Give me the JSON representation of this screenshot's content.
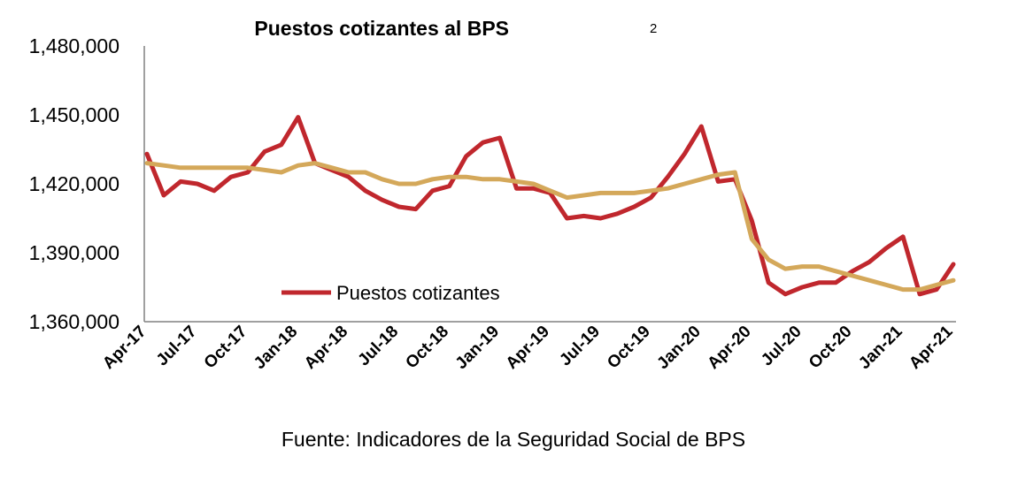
{
  "chart_data": {
    "type": "line",
    "title": "Puestos cotizantes al BPS",
    "title_superscript": "2",
    "x": [
      "Apr-17",
      "May-17",
      "Jun-17",
      "Jul-17",
      "Aug-17",
      "Sep-17",
      "Oct-17",
      "Nov-17",
      "Dec-17",
      "Jan-18",
      "Feb-18",
      "Mar-18",
      "Apr-18",
      "May-18",
      "Jun-18",
      "Jul-18",
      "Aug-18",
      "Sep-18",
      "Oct-18",
      "Nov-18",
      "Dec-18",
      "Jan-19",
      "Feb-19",
      "Mar-19",
      "Apr-19",
      "May-19",
      "Jun-19",
      "Jul-19",
      "Aug-19",
      "Sep-19",
      "Oct-19",
      "Nov-19",
      "Dec-19",
      "Jan-20",
      "Feb-20",
      "Mar-20",
      "Apr-20",
      "May-20",
      "Jun-20",
      "Jul-20",
      "Aug-20",
      "Sep-20",
      "Oct-20",
      "Nov-20",
      "Dec-20",
      "Jan-21",
      "Feb-21",
      "Mar-21",
      "Apr-21"
    ],
    "xtick_labels": [
      "Apr-17",
      "Jul-17",
      "Oct-17",
      "Jan-18",
      "Apr-18",
      "Jul-18",
      "Oct-18",
      "Jan-19",
      "Apr-19",
      "Jul-19",
      "Oct-19",
      "Jan-20",
      "Apr-20",
      "Jul-20",
      "Oct-20",
      "Jan-21",
      "Apr-21"
    ],
    "ytick_labels": [
      "1,360,000",
      "1,390,000",
      "1,420,000",
      "1,450,000",
      "1,480,000"
    ],
    "ylim": [
      1360000,
      1480000
    ],
    "series": [
      {
        "name": "Puestos cotizantes",
        "color": "#c0272d",
        "values": [
          1433000,
          1415000,
          1421000,
          1420000,
          1417000,
          1423000,
          1425000,
          1434000,
          1437000,
          1449000,
          1429000,
          1426000,
          1423000,
          1417000,
          1413000,
          1410000,
          1409000,
          1417000,
          1419000,
          1432000,
          1438000,
          1440000,
          1418000,
          1418000,
          1416000,
          1405000,
          1406000,
          1405000,
          1407000,
          1410000,
          1414000,
          1423000,
          1433000,
          1445000,
          1421000,
          1422000,
          1404000,
          1377000,
          1372000,
          1375000,
          1377000,
          1377000,
          1382000,
          1386000,
          1392000,
          1397000,
          1372000,
          1374000,
          1385000
        ]
      },
      {
        "name": "",
        "color": "#d4a85a",
        "values": [
          1429000,
          1428000,
          1427000,
          1427000,
          1427000,
          1427000,
          1427000,
          1426000,
          1425000,
          1428000,
          1429000,
          1427000,
          1425000,
          1425000,
          1422000,
          1420000,
          1420000,
          1422000,
          1423000,
          1423000,
          1422000,
          1422000,
          1421000,
          1420000,
          1417000,
          1414000,
          1415000,
          1416000,
          1416000,
          1416000,
          1417000,
          1418000,
          1420000,
          1422000,
          1424000,
          1425000,
          1396000,
          1387000,
          1383000,
          1384000,
          1384000,
          1382000,
          1380000,
          1378000,
          1376000,
          1374000,
          1374000,
          1376000,
          1378000
        ]
      }
    ],
    "legend": {
      "label": "Puestos cotizantes",
      "placement": "bottom-left-inside"
    },
    "grid": false,
    "source": "Fuente: Indicadores de la Seguridad Social de BPS"
  }
}
